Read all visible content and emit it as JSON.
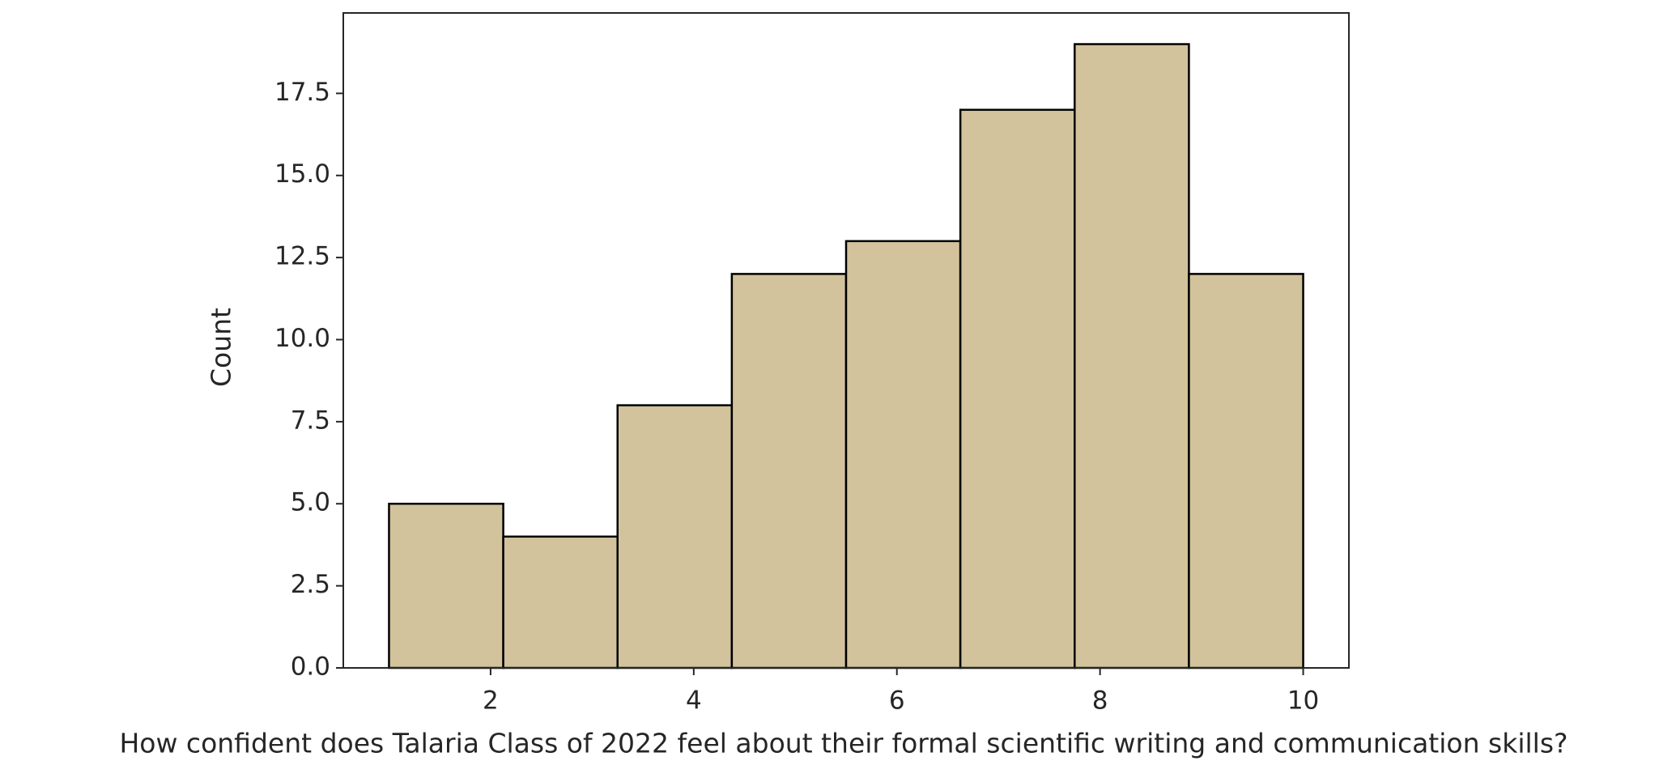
{
  "chart_data": {
    "type": "histogram",
    "xlabel": "How confident does Talaria Class of 2022 feel about their formal scientific writing and communication skills?",
    "ylabel": "Count",
    "bins": [
      1,
      2.125,
      3.25,
      4.375,
      5.5,
      6.625,
      7.75,
      8.875,
      10
    ],
    "values": [
      5,
      4,
      8,
      12,
      13,
      17,
      19,
      12
    ],
    "color": "#d2c39c",
    "edgecolor": "#000000",
    "xlim": [
      0.55,
      10.45
    ],
    "ylim": [
      0,
      19.95
    ],
    "xticks": [
      2,
      4,
      6,
      8,
      10
    ],
    "yticks": [
      {
        "value": 0,
        "label": "0.0"
      },
      2.5,
      {
        "value": 5,
        "label": "5.0"
      },
      7.5,
      {
        "value": 10,
        "label": "10.0"
      },
      12.5,
      {
        "value": 15,
        "label": "15.0"
      },
      17.5
    ],
    "grid": false
  }
}
